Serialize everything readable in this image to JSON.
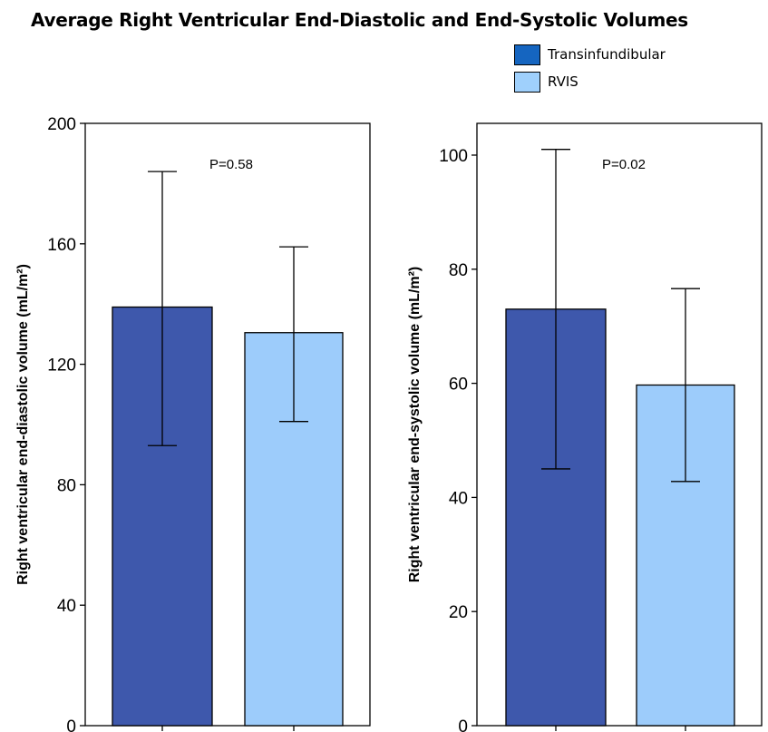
{
  "title": "Average Right Ventricular End-Diastolic and End-Systolic Volumes",
  "legend": [
    {
      "label": "Transinfundibular",
      "color": "#1565c0"
    },
    {
      "label": "RVIS",
      "color": "#9fd0fc"
    }
  ],
  "colors": {
    "transinfundibular_bar": "#3e58ac",
    "rvis_bar": "#9dccfb"
  },
  "chart_data": [
    {
      "type": "bar",
      "categories": [
        "Transinfundibular",
        "RVIS"
      ],
      "values": [
        139,
        130.5
      ],
      "error_low": [
        93,
        101
      ],
      "error_high": [
        184,
        159
      ],
      "ylabel": "Right ventricular end-diastolic volume (mL/m²)",
      "ylim": [
        0,
        200
      ],
      "yticks": [
        0,
        40,
        80,
        120,
        160,
        200
      ],
      "annotation": "P=0.58",
      "grid": false
    },
    {
      "type": "bar",
      "categories": [
        "Transinfundibular",
        "RVIS"
      ],
      "values": [
        73,
        59.7
      ],
      "error_low": [
        45,
        42.8
      ],
      "error_high": [
        101,
        76.6
      ],
      "ylabel": "Right ventricular end-systolic volume (mL/m²)",
      "ylim": [
        0,
        100
      ],
      "yticks": [
        0,
        20,
        40,
        60,
        80,
        100
      ],
      "annotation": "P=0.02",
      "grid": false
    }
  ]
}
